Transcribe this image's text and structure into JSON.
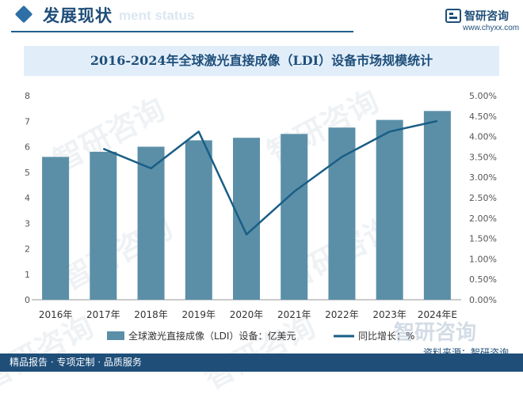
{
  "header": {
    "title": "发展现状",
    "subtitle_bg": "ment status",
    "accent_color": "#1f4e79"
  },
  "brand": {
    "name": "智研咨询",
    "url": "www.chyxx.com",
    "watermark": "智研咨询"
  },
  "source": "资料来源：智研咨询",
  "footer": {
    "left": "精品报告 · 专项定制 · 品质服务",
    "right": ""
  },
  "chart_data": {
    "type": "bar",
    "title": "2016-2024年全球激光直接成像（LDI）设备市场规模统计",
    "categories": [
      "2016年",
      "2017年",
      "2018年",
      "2019年",
      "2020年",
      "2021年",
      "2022年",
      "2023年",
      "2024年E"
    ],
    "series": [
      {
        "name": "全球激光直接成像（LDI）设备：亿美元",
        "type": "bar",
        "axis": "left",
        "color": "#5b8fa8",
        "values": [
          5.6,
          5.8,
          6.0,
          6.25,
          6.35,
          6.5,
          6.75,
          7.05,
          7.4
        ]
      },
      {
        "name": "同比增长：%",
        "type": "line",
        "axis": "right",
        "color": "#1a5e86",
        "values": [
          null,
          3.7,
          3.22,
          4.12,
          1.6,
          2.65,
          3.5,
          4.12,
          4.38
        ]
      }
    ],
    "y_left": {
      "min": 0,
      "max": 8,
      "step": 1,
      "ticks": [
        "0",
        "1",
        "2",
        "3",
        "4",
        "5",
        "6",
        "7",
        "8"
      ]
    },
    "y_right": {
      "min": 0,
      "max": 5,
      "step": 0.5,
      "ticks": [
        "0.00%",
        "0.50%",
        "1.00%",
        "1.50%",
        "2.00%",
        "2.50%",
        "3.00%",
        "3.50%",
        "4.00%",
        "4.50%",
        "5.00%"
      ]
    },
    "grid": false,
    "legend_position": "bottom"
  }
}
